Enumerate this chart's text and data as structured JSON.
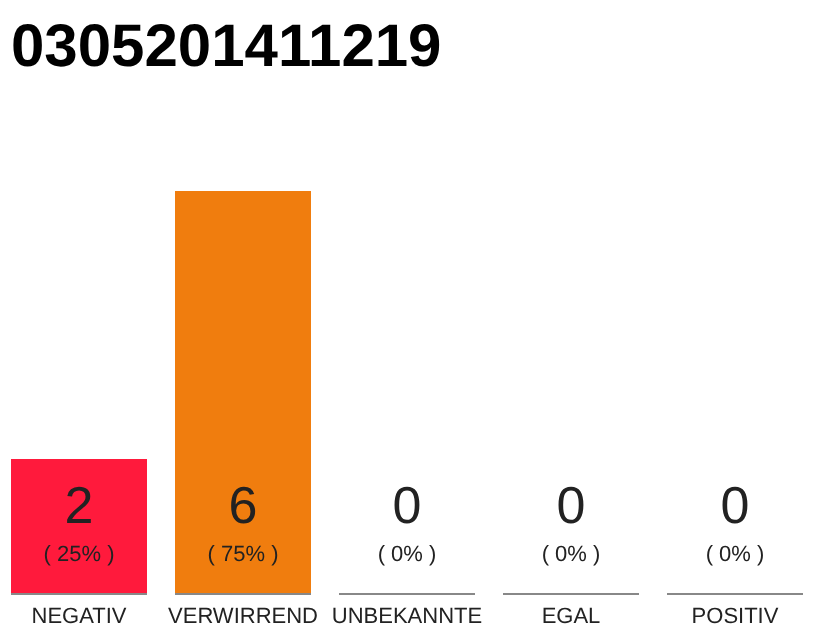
{
  "chart_data": {
    "type": "bar",
    "title": "0305201411219",
    "categories": [
      "NEGATIV",
      "VERWIRREND",
      "UNBEKANNTE",
      "EGAL",
      "POSITIV"
    ],
    "values": [
      2,
      6,
      0,
      0,
      0
    ],
    "colors": [
      "#ff1a3c",
      "#f07d0e",
      "#cccccc",
      "#cccccc",
      "#cccccc"
    ],
    "data_labels": true,
    "annotations": [
      "( 25% )",
      "( 75% )",
      "( 0% )",
      "( 0% )",
      "( 0% )"
    ],
    "grid": false
  }
}
